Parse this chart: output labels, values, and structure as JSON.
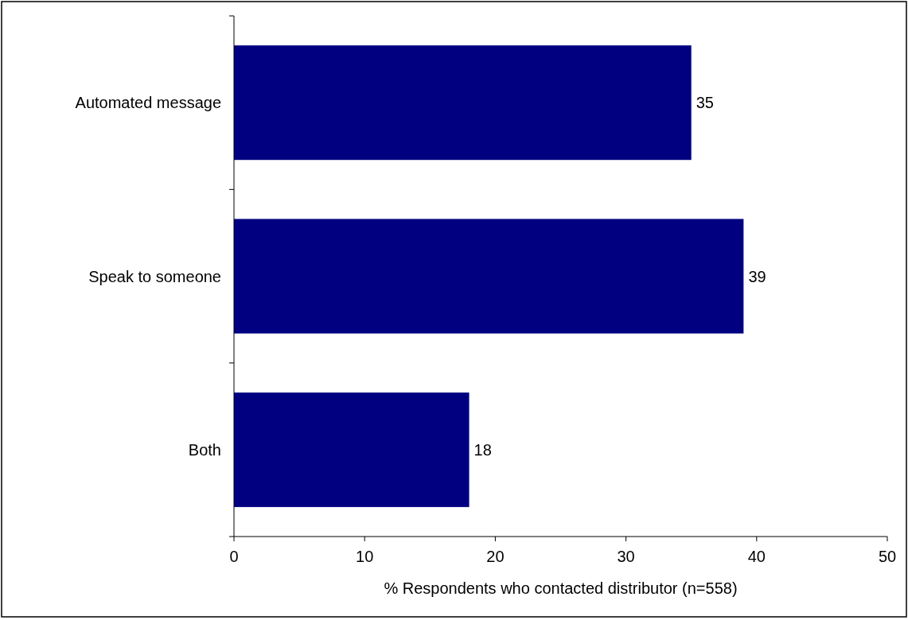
{
  "chart_data": {
    "type": "bar",
    "orientation": "horizontal",
    "xlabel": "% Respondents who contacted distributor (n=558)",
    "categories": [
      "Automated message",
      "Speak to someone",
      "Both"
    ],
    "values": [
      35,
      39,
      18
    ],
    "color": "#000080",
    "xlim": [
      0,
      50
    ],
    "xticks": [
      0,
      10,
      20,
      30,
      40,
      50
    ],
    "grid": false,
    "data_labels": true
  }
}
